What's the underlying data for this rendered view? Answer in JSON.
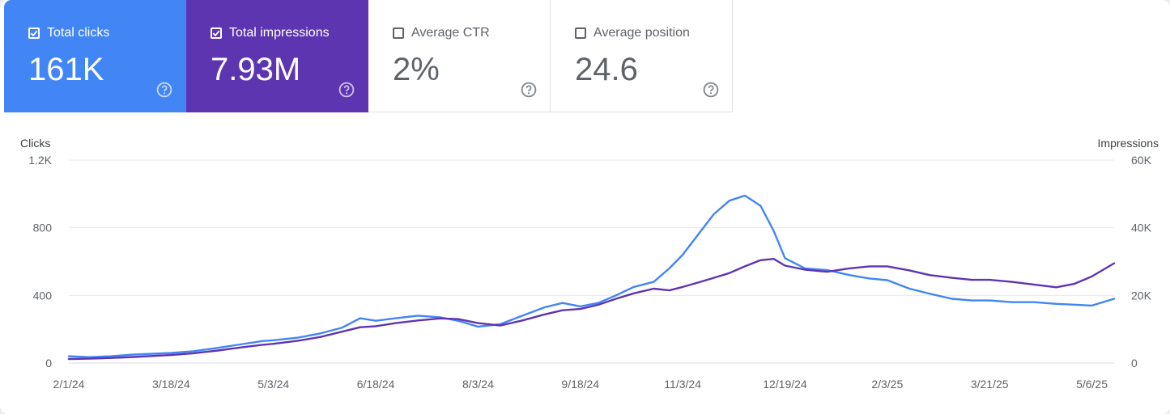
{
  "metrics": [
    {
      "label": "Total clicks",
      "value": "161K",
      "checked": true
    },
    {
      "label": "Total impressions",
      "value": "7.93M",
      "checked": true
    },
    {
      "label": "Average CTR",
      "value": "2%",
      "checked": false
    },
    {
      "label": "Average position",
      "value": "24.6",
      "checked": false
    }
  ],
  "icons": {
    "checkbox_checked": "check-icon",
    "help": "help-circle-icon"
  },
  "colors": {
    "clicks": "#4285f4",
    "impressions": "#5e35b1",
    "grid": "#e8eaed",
    "axis_text": "#5f6368"
  },
  "chart_data": {
    "type": "line",
    "xlabel": "",
    "x_start": "2/1/24",
    "x_end": "5/16/25",
    "x_tick_labels": [
      "2/1/24",
      "3/18/24",
      "5/3/24",
      "6/18/24",
      "8/3/24",
      "9/18/24",
      "11/3/24",
      "12/19/24",
      "2/3/25",
      "3/21/25",
      "5/6/25"
    ],
    "y_left": {
      "label": "Clicks",
      "ticks": [
        "0",
        "400",
        "800",
        "1.2K"
      ],
      "range": [
        0,
        1200
      ]
    },
    "y_right": {
      "label": "Impressions",
      "ticks": [
        "0",
        "20K",
        "40K",
        "60K"
      ],
      "range": [
        0,
        60000
      ]
    },
    "grid": true,
    "series": [
      {
        "name": "Clicks",
        "axis": "left",
        "color": "#4285f4",
        "points": [
          [
            "2/1/24",
            40
          ],
          [
            "2/10/24",
            35
          ],
          [
            "2/20/24",
            40
          ],
          [
            "3/1/24",
            50
          ],
          [
            "3/10/24",
            55
          ],
          [
            "3/18/24",
            60
          ],
          [
            "3/28/24",
            70
          ],
          [
            "4/8/24",
            90
          ],
          [
            "4/18/24",
            110
          ],
          [
            "4/28/24",
            130
          ],
          [
            "5/3/24",
            135
          ],
          [
            "5/14/24",
            150
          ],
          [
            "5/24/24",
            175
          ],
          [
            "6/3/24",
            210
          ],
          [
            "6/11/24",
            265
          ],
          [
            "6/18/24",
            250
          ],
          [
            "6/27/24",
            265
          ],
          [
            "7/7/24",
            280
          ],
          [
            "7/17/24",
            270
          ],
          [
            "7/25/24",
            250
          ],
          [
            "8/3/24",
            215
          ],
          [
            "8/13/24",
            230
          ],
          [
            "8/23/24",
            280
          ],
          [
            "9/2/24",
            330
          ],
          [
            "9/10/24",
            355
          ],
          [
            "9/18/24",
            335
          ],
          [
            "9/26/24",
            355
          ],
          [
            "10/4/24",
            400
          ],
          [
            "10/12/24",
            450
          ],
          [
            "10/21/24",
            480
          ],
          [
            "10/28/24",
            560
          ],
          [
            "11/3/24",
            640
          ],
          [
            "11/10/24",
            760
          ],
          [
            "11/17/24",
            880
          ],
          [
            "11/24/24",
            960
          ],
          [
            "12/1/24",
            990
          ],
          [
            "12/8/24",
            930
          ],
          [
            "12/14/24",
            780
          ],
          [
            "12/19/24",
            620
          ],
          [
            "12/28/24",
            560
          ],
          [
            "1/7/25",
            550
          ],
          [
            "1/17/25",
            520
          ],
          [
            "1/26/25",
            500
          ],
          [
            "2/3/25",
            490
          ],
          [
            "2/13/25",
            440
          ],
          [
            "2/22/25",
            410
          ],
          [
            "3/4/25",
            380
          ],
          [
            "3/13/25",
            370
          ],
          [
            "3/21/25",
            370
          ],
          [
            "3/31/25",
            360
          ],
          [
            "4/10/25",
            360
          ],
          [
            "4/20/25",
            350
          ],
          [
            "4/28/25",
            345
          ],
          [
            "5/6/25",
            340
          ],
          [
            "5/16/25",
            380
          ]
        ]
      },
      {
        "name": "Impressions",
        "axis": "right",
        "color": "#5e35b1",
        "points": [
          [
            "2/1/24",
            1200
          ],
          [
            "2/10/24",
            1300
          ],
          [
            "2/20/24",
            1500
          ],
          [
            "3/1/24",
            1800
          ],
          [
            "3/10/24",
            2100
          ],
          [
            "3/18/24",
            2400
          ],
          [
            "3/28/24",
            2900
          ],
          [
            "4/8/24",
            3700
          ],
          [
            "4/18/24",
            4600
          ],
          [
            "4/28/24",
            5400
          ],
          [
            "5/3/24",
            5700
          ],
          [
            "5/14/24",
            6600
          ],
          [
            "5/24/24",
            7700
          ],
          [
            "6/3/24",
            9300
          ],
          [
            "6/11/24",
            10600
          ],
          [
            "6/18/24",
            10900
          ],
          [
            "6/27/24",
            11800
          ],
          [
            "7/7/24",
            12600
          ],
          [
            "7/17/24",
            13200
          ],
          [
            "7/25/24",
            13000
          ],
          [
            "8/3/24",
            11800
          ],
          [
            "8/13/24",
            11100
          ],
          [
            "8/23/24",
            12600
          ],
          [
            "9/2/24",
            14400
          ],
          [
            "9/10/24",
            15600
          ],
          [
            "9/18/24",
            16000
          ],
          [
            "9/26/24",
            17200
          ],
          [
            "10/4/24",
            19000
          ],
          [
            "10/12/24",
            20600
          ],
          [
            "10/21/24",
            22000
          ],
          [
            "10/28/24",
            21500
          ],
          [
            "11/3/24",
            22500
          ],
          [
            "11/10/24",
            23800
          ],
          [
            "11/17/24",
            25200
          ],
          [
            "11/24/24",
            26600
          ],
          [
            "12/1/24",
            28600
          ],
          [
            "12/8/24",
            30400
          ],
          [
            "12/14/24",
            30800
          ],
          [
            "12/19/24",
            28800
          ],
          [
            "12/28/24",
            27600
          ],
          [
            "1/7/25",
            27000
          ],
          [
            "1/17/25",
            28000
          ],
          [
            "1/26/25",
            28600
          ],
          [
            "2/3/25",
            28600
          ],
          [
            "2/13/25",
            27400
          ],
          [
            "2/22/25",
            26000
          ],
          [
            "3/4/25",
            25200
          ],
          [
            "3/13/25",
            24600
          ],
          [
            "3/21/25",
            24600
          ],
          [
            "3/31/25",
            24000
          ],
          [
            "4/10/25",
            23200
          ],
          [
            "4/20/25",
            22400
          ],
          [
            "4/28/25",
            23400
          ],
          [
            "5/6/25",
            25600
          ],
          [
            "5/16/25",
            29500
          ]
        ]
      }
    ]
  }
}
